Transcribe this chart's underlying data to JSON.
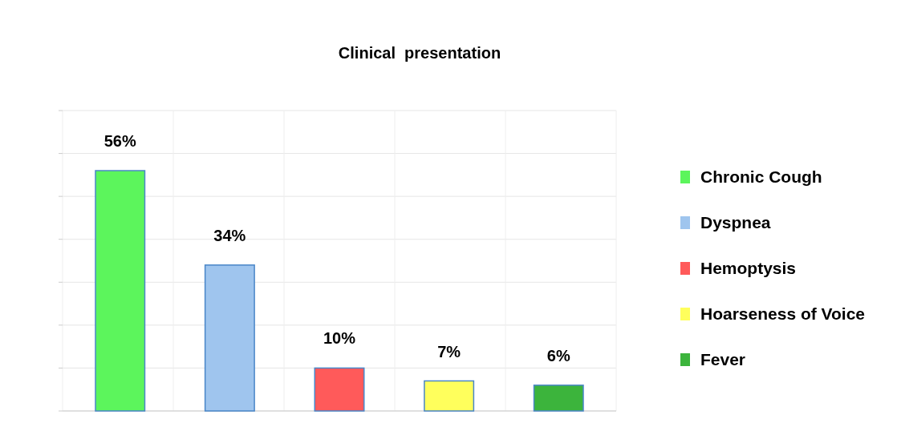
{
  "chart_data": {
    "type": "bar",
    "title": "Clinical  presentation",
    "categories": [
      null,
      null,
      null,
      null,
      null
    ],
    "series": [
      {
        "name": "Chronic Cough",
        "color": "#5cf55c",
        "values": [
          56,
          null,
          null,
          null,
          null
        ],
        "value_labels": [
          "56%",
          null,
          null,
          null,
          null
        ]
      },
      {
        "name": "Dyspnea",
        "color": "#9fc5ee",
        "values": [
          null,
          34,
          null,
          null,
          null
        ],
        "value_labels": [
          null,
          "34%",
          null,
          null,
          null
        ]
      },
      {
        "name": "Hemoptysis",
        "color": "#ff5a5a",
        "values": [
          null,
          null,
          10,
          null,
          null
        ],
        "value_labels": [
          null,
          null,
          "10%",
          null,
          null
        ]
      },
      {
        "name": "Hoarseness of Voice",
        "color": "#ffff5c",
        "values": [
          null,
          null,
          null,
          7,
          null
        ],
        "value_labels": [
          null,
          null,
          null,
          "7%",
          null
        ]
      },
      {
        "name": "Fever",
        "color": "#3cb43c",
        "values": [
          null,
          null,
          null,
          null,
          6
        ],
        "value_labels": [
          null,
          null,
          null,
          null,
          "6%"
        ]
      }
    ],
    "ylim": [
      0,
      70
    ],
    "yticks": [
      {
        "value": 0,
        "label": null
      },
      {
        "value": 10,
        "label": null
      },
      {
        "value": 20,
        "label": null
      },
      {
        "value": 30,
        "label": null
      },
      {
        "value": 40,
        "label": null
      },
      {
        "value": 50,
        "label": null
      },
      {
        "value": 60,
        "label": null
      },
      {
        "value": 70,
        "label": null
      }
    ],
    "stacked": true,
    "grid": true,
    "legend": "right"
  }
}
